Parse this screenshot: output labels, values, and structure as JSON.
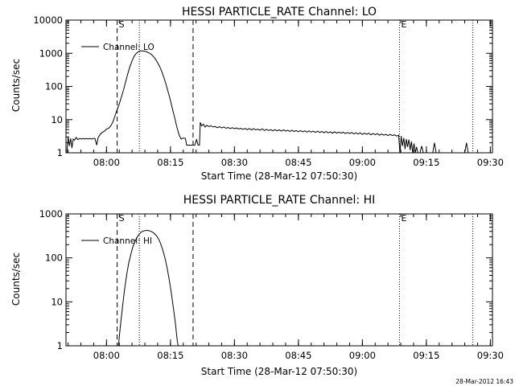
{
  "timestamp": "28-Mar-2012 16:43",
  "chart_data": [
    {
      "type": "line",
      "title": "HESSI PARTICLE_RATE Channel: LO",
      "xlabel": "Start Time (28-Mar-12 07:50:30)",
      "ylabel": "Counts/sec",
      "x_unit": "minutes after 07:50:30",
      "xlim": [
        0,
        100
      ],
      "ylim": [
        1,
        10000
      ],
      "yscale": "log",
      "x_ticks": [
        {
          "x": 9.5,
          "label": "08:00"
        },
        {
          "x": 24.5,
          "label": "08:15"
        },
        {
          "x": 39.5,
          "label": "08:30"
        },
        {
          "x": 54.5,
          "label": "08:45"
        },
        {
          "x": 69.5,
          "label": "09:00"
        },
        {
          "x": 84.5,
          "label": "09:15"
        },
        {
          "x": 99.5,
          "label": "09:30"
        }
      ],
      "y_ticks": [
        {
          "y": 1,
          "label": "1"
        },
        {
          "y": 10,
          "label": "10"
        },
        {
          "y": 100,
          "label": "100"
        },
        {
          "y": 1000,
          "label": "1000"
        },
        {
          "y": 10000,
          "label": "10000"
        }
      ],
      "legend": {
        "label": "Channel: LO",
        "position": "top-left"
      },
      "markers": [
        {
          "x": 12.0,
          "style": "dashed",
          "label": "S"
        },
        {
          "x": 17.2,
          "style": "dotted",
          "label": ""
        },
        {
          "x": 29.8,
          "style": "dashed",
          "label": ""
        },
        {
          "x": 78.2,
          "style": "dotted",
          "label": "E"
        },
        {
          "x": 95.4,
          "style": "dotted",
          "label": ""
        }
      ],
      "series": [
        {
          "points": [
            [
              0.2,
              1.0
            ],
            [
              0.5,
              3.0
            ],
            [
              0.8,
              1.6
            ],
            [
              1.1,
              2.7
            ],
            [
              1.4,
              1.4
            ],
            [
              1.7,
              2.6
            ],
            [
              2.0,
              2.4
            ],
            [
              2.4,
              2.9
            ],
            [
              2.8,
              2.5
            ],
            [
              3.2,
              2.7
            ],
            [
              3.6,
              2.6
            ],
            [
              4.0,
              2.7
            ],
            [
              4.4,
              2.6
            ],
            [
              4.8,
              2.7
            ],
            [
              5.2,
              2.6
            ],
            [
              5.6,
              2.7
            ],
            [
              6.0,
              2.6
            ],
            [
              6.4,
              2.7
            ],
            [
              6.8,
              2.7
            ],
            [
              7.2,
              1.7
            ],
            [
              7.5,
              2.8
            ],
            [
              8.0,
              3.6
            ],
            [
              8.5,
              4.1
            ],
            [
              9.0,
              4.5
            ],
            [
              9.5,
              5.2
            ],
            [
              10.0,
              5.5
            ],
            [
              10.5,
              6.5
            ],
            [
              11.0,
              8.5
            ],
            [
              11.5,
              13
            ],
            [
              12.0,
              20
            ],
            [
              12.5,
              30
            ],
            [
              13.0,
              48
            ],
            [
              13.5,
              80
            ],
            [
              14.0,
              140
            ],
            [
              14.5,
              240
            ],
            [
              15.0,
              400
            ],
            [
              15.5,
              600
            ],
            [
              16.0,
              820
            ],
            [
              16.5,
              1000
            ],
            [
              17.0,
              1120
            ],
            [
              17.5,
              1180
            ],
            [
              18.0,
              1180
            ],
            [
              18.5,
              1150
            ],
            [
              19.0,
              1100
            ],
            [
              19.5,
              1020
            ],
            [
              20.0,
              920
            ],
            [
              20.5,
              800
            ],
            [
              21.0,
              660
            ],
            [
              21.5,
              520
            ],
            [
              22.0,
              390
            ],
            [
              22.5,
              270
            ],
            [
              23.0,
              180
            ],
            [
              23.5,
              110
            ],
            [
              24.0,
              65
            ],
            [
              24.5,
              38
            ],
            [
              25.0,
              20
            ],
            [
              25.5,
              11
            ],
            [
              26.0,
              6
            ],
            [
              26.5,
              3.5
            ],
            [
              27.0,
              2.6
            ],
            [
              27.5,
              2.8
            ],
            [
              28.0,
              2.7
            ],
            [
              28.3,
              1.7
            ],
            [
              28.8,
              1.7
            ],
            [
              29.5,
              1.7
            ],
            [
              30.2,
              1.7
            ],
            [
              30.6,
              2.5
            ],
            [
              31.0,
              1.7
            ],
            [
              31.3,
              1.7
            ],
            [
              31.5,
              8.3
            ],
            [
              31.8,
              6.5
            ],
            [
              32.2,
              7.3
            ],
            [
              32.6,
              6.0
            ],
            [
              33.0,
              6.7
            ],
            [
              33.5,
              6.2
            ],
            [
              34.0,
              6.5
            ],
            [
              34.5,
              6.0
            ],
            [
              35.0,
              6.2
            ],
            [
              35.5,
              5.7
            ],
            [
              36.0,
              6.1
            ],
            [
              36.5,
              5.6
            ],
            [
              37.0,
              6.0
            ],
            [
              37.5,
              5.5
            ],
            [
              38.0,
              5.8
            ],
            [
              38.5,
              5.4
            ],
            [
              39.0,
              5.7
            ],
            [
              39.5,
              5.3
            ],
            [
              40.0,
              5.6
            ],
            [
              40.5,
              5.2
            ],
            [
              41.0,
              5.5
            ],
            [
              41.5,
              5.1
            ],
            [
              42.0,
              5.4
            ],
            [
              42.5,
              5.0
            ],
            [
              43.0,
              5.4
            ],
            [
              43.5,
              4.9
            ],
            [
              44.0,
              5.3
            ],
            [
              44.5,
              4.9
            ],
            [
              45.0,
              5.2
            ],
            [
              45.5,
              4.8
            ],
            [
              46.0,
              5.3
            ],
            [
              46.5,
              4.7
            ],
            [
              47.0,
              5.1
            ],
            [
              47.5,
              4.7
            ],
            [
              48.0,
              5.0
            ],
            [
              48.5,
              4.6
            ],
            [
              49.0,
              5.0
            ],
            [
              49.5,
              4.6
            ],
            [
              50.0,
              4.9
            ],
            [
              50.5,
              4.5
            ],
            [
              51.0,
              4.9
            ],
            [
              51.5,
              4.5
            ],
            [
              52.0,
              4.8
            ],
            [
              52.5,
              4.4
            ],
            [
              53.0,
              4.8
            ],
            [
              53.5,
              4.4
            ],
            [
              54.0,
              4.7
            ],
            [
              54.5,
              4.3
            ],
            [
              55.0,
              4.7
            ],
            [
              55.5,
              4.3
            ],
            [
              56.0,
              4.6
            ],
            [
              56.5,
              4.2
            ],
            [
              57.0,
              4.6
            ],
            [
              57.5,
              4.2
            ],
            [
              58.0,
              4.5
            ],
            [
              58.5,
              4.1
            ],
            [
              59.0,
              4.5
            ],
            [
              59.5,
              4.1
            ],
            [
              60.0,
              4.4
            ],
            [
              60.5,
              4.0
            ],
            [
              61.0,
              4.4
            ],
            [
              61.5,
              4.0
            ],
            [
              62.0,
              4.3
            ],
            [
              62.5,
              3.9
            ],
            [
              63.0,
              4.3
            ],
            [
              63.5,
              3.9
            ],
            [
              64.0,
              4.2
            ],
            [
              64.5,
              3.9
            ],
            [
              65.0,
              4.2
            ],
            [
              65.5,
              3.8
            ],
            [
              66.0,
              4.1
            ],
            [
              66.5,
              3.8
            ],
            [
              67.0,
              4.1
            ],
            [
              67.5,
              3.7
            ],
            [
              68.0,
              4.0
            ],
            [
              68.5,
              3.7
            ],
            [
              69.0,
              4.0
            ],
            [
              69.5,
              3.6
            ],
            [
              70.0,
              3.9
            ],
            [
              70.5,
              3.6
            ],
            [
              71.0,
              3.9
            ],
            [
              71.5,
              3.5
            ],
            [
              72.0,
              3.8
            ],
            [
              72.5,
              3.5
            ],
            [
              73.0,
              3.8
            ],
            [
              73.5,
              3.4
            ],
            [
              74.0,
              3.7
            ],
            [
              74.5,
              3.4
            ],
            [
              75.0,
              3.6
            ],
            [
              75.5,
              3.3
            ],
            [
              76.0,
              3.6
            ],
            [
              76.5,
              3.3
            ],
            [
              77.0,
              3.5
            ],
            [
              77.5,
              3.2
            ],
            [
              78.0,
              3.4
            ],
            [
              78.3,
              1.0
            ],
            [
              78.6,
              3.2
            ],
            [
              78.9,
              1.6
            ],
            [
              79.2,
              2.8
            ],
            [
              79.5,
              1.3
            ],
            [
              79.8,
              2.6
            ],
            [
              80.1,
              1.5
            ],
            [
              80.4,
              2.5
            ],
            [
              80.7,
              1.2
            ],
            [
              81.0,
              2.2
            ],
            [
              81.3,
              1.0
            ],
            [
              81.6,
              1.9
            ],
            [
              81.9,
              1.0
            ],
            [
              82.2,
              1.5
            ],
            [
              82.5,
              1.0
            ],
            [
              83.0,
              1.0
            ],
            [
              83.4,
              1.6
            ],
            [
              83.8,
              1.0
            ],
            [
              86.0,
              1.0
            ],
            [
              86.4,
              2.0
            ],
            [
              86.8,
              1.0
            ],
            [
              93.5,
              1.0
            ],
            [
              93.9,
              2.0
            ],
            [
              94.3,
              1.0
            ]
          ]
        }
      ]
    },
    {
      "type": "line",
      "title": "HESSI PARTICLE_RATE Channel: HI",
      "xlabel": "Start Time (28-Mar-12 07:50:30)",
      "ylabel": "Counts/sec",
      "x_unit": "minutes after 07:50:30",
      "xlim": [
        0,
        100
      ],
      "ylim": [
        1,
        1000
      ],
      "yscale": "log",
      "x_ticks": [
        {
          "x": 9.5,
          "label": "08:00"
        },
        {
          "x": 24.5,
          "label": "08:15"
        },
        {
          "x": 39.5,
          "label": "08:30"
        },
        {
          "x": 54.5,
          "label": "08:45"
        },
        {
          "x": 69.5,
          "label": "09:00"
        },
        {
          "x": 84.5,
          "label": "09:15"
        },
        {
          "x": 99.5,
          "label": "09:30"
        }
      ],
      "y_ticks": [
        {
          "y": 1,
          "label": "1"
        },
        {
          "y": 10,
          "label": "10"
        },
        {
          "y": 100,
          "label": "100"
        },
        {
          "y": 1000,
          "label": "1000"
        }
      ],
      "legend": {
        "label": "Channel: HI",
        "position": "top-left"
      },
      "markers": [
        {
          "x": 12.0,
          "style": "dashed",
          "label": "S"
        },
        {
          "x": 17.2,
          "style": "dotted",
          "label": ""
        },
        {
          "x": 29.8,
          "style": "dashed",
          "label": ""
        },
        {
          "x": 78.2,
          "style": "dotted",
          "label": "E"
        },
        {
          "x": 95.4,
          "style": "dotted",
          "label": ""
        }
      ],
      "series": [
        {
          "points": [
            [
              12.3,
              1.0
            ],
            [
              12.7,
              2.5
            ],
            [
              13.2,
              7
            ],
            [
              13.7,
              18
            ],
            [
              14.2,
              40
            ],
            [
              14.7,
              75
            ],
            [
              15.2,
              120
            ],
            [
              15.7,
              180
            ],
            [
              16.2,
              240
            ],
            [
              16.7,
              300
            ],
            [
              17.2,
              350
            ],
            [
              17.7,
              390
            ],
            [
              18.2,
              410
            ],
            [
              18.7,
              420
            ],
            [
              19.2,
              420
            ],
            [
              19.7,
              410
            ],
            [
              20.2,
              390
            ],
            [
              20.7,
              360
            ],
            [
              21.2,
              320
            ],
            [
              21.7,
              270
            ],
            [
              22.2,
              210
            ],
            [
              22.7,
              150
            ],
            [
              23.2,
              100
            ],
            [
              23.7,
              60
            ],
            [
              24.2,
              32
            ],
            [
              24.7,
              16
            ],
            [
              25.2,
              7
            ],
            [
              25.7,
              3
            ],
            [
              26.1,
              1.3
            ],
            [
              26.3,
              1.0
            ]
          ]
        }
      ]
    }
  ]
}
